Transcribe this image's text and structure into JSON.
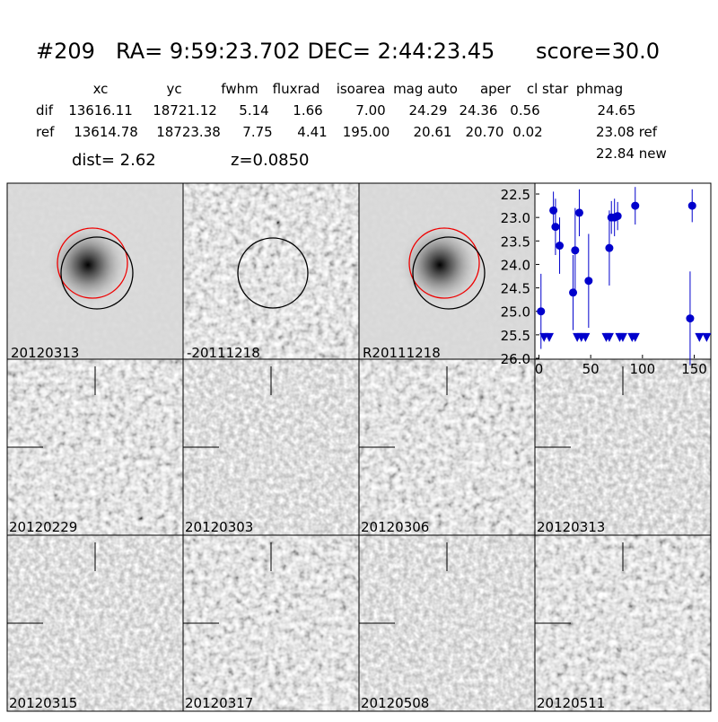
{
  "header": {
    "id": "#209",
    "coords": "RA= 9:59:23.702 DEC= 2:44:23.45",
    "score": "score=30.0"
  },
  "table": {
    "columns": [
      "xc",
      "yc",
      "fwhm",
      "fluxrad",
      "isoarea",
      "mag auto",
      "aper",
      "cl star",
      "phmag"
    ],
    "rows": [
      [
        "dif",
        "13616.11",
        "18721.12",
        "5.14",
        "1.66",
        "7.00",
        "24.29",
        "24.36",
        "0.56",
        "24.65"
      ],
      [
        "ref",
        "13614.78",
        "18723.38",
        "7.75",
        "4.41",
        "195.00",
        "20.61",
        "20.70",
        "0.02",
        "23.08 ref"
      ]
    ],
    "extra": "22.84 new"
  },
  "dist": "dist=  2.62",
  "z": "z=0.0850",
  "top_panels": [
    {
      "label": "20120313"
    },
    {
      "label": "-20111218"
    },
    {
      "label": "R20111218"
    }
  ],
  "grid_panels": [
    {
      "label": "20120229"
    },
    {
      "label": "20120303"
    },
    {
      "label": "20120306"
    },
    {
      "label": "20120313",
      "color": "#ff0000"
    },
    {
      "label": "20120315"
    },
    {
      "label": "20120317"
    },
    {
      "label": "20120508"
    },
    {
      "label": "20120511"
    }
  ],
  "chart_data": {
    "type": "scatter",
    "xlim": [
      -3,
      166
    ],
    "ylim": [
      26.0,
      22.27
    ],
    "xticks": [
      0,
      50,
      100,
      150
    ],
    "yticks": [
      22.5,
      {
        "value": 23,
        "label": "23.0"
      },
      23.5,
      {
        "value": 24,
        "label": "24.0"
      },
      24.5,
      {
        "value": 25,
        "label": "25.0"
      },
      25.5,
      {
        "value": 26,
        "label": "26.0"
      }
    ],
    "series": [
      {
        "color": "#0000cc",
        "marker": "circle",
        "x": [
          2,
          14,
          16,
          20,
          33,
          35,
          39,
          48,
          68,
          70,
          73,
          76,
          93,
          146,
          148
        ],
        "values": [
          25.0,
          22.85,
          23.2,
          23.6,
          24.6,
          23.7,
          22.9,
          24.35,
          23.65,
          23.0,
          23.0,
          22.97,
          22.75,
          25.15,
          22.75
        ],
        "errors": [
          0.8,
          0.4,
          0.6,
          0.6,
          0.8,
          0.9,
          0.5,
          1.0,
          0.8,
          0.35,
          0.4,
          0.3,
          0.4,
          1.0,
          0.35
        ]
      },
      {
        "color": "#0000cc",
        "marker": "triangle",
        "x": [
          5,
          10,
          37,
          41,
          45,
          65,
          68,
          78,
          81,
          90,
          93,
          155,
          162
        ],
        "values": [
          25.5,
          25.5,
          25.5,
          25.5,
          25.5,
          25.5,
          25.5,
          25.5,
          25.5,
          25.5,
          25.5,
          25.5,
          25.5
        ]
      }
    ]
  }
}
